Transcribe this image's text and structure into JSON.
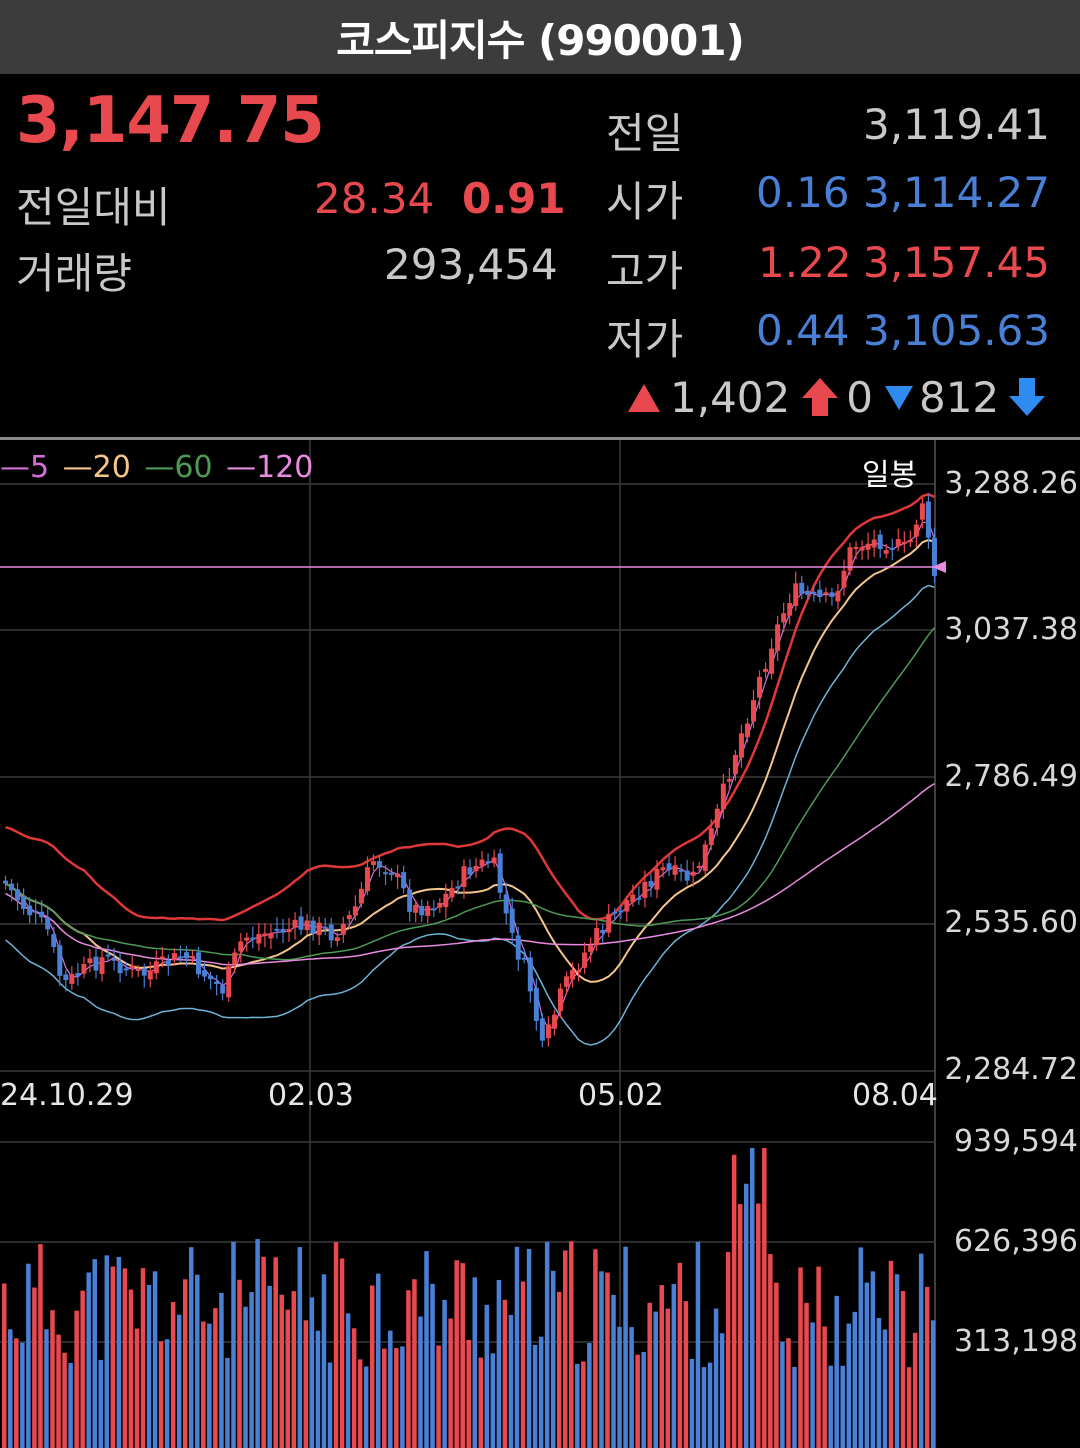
{
  "title": "코스피지수 (990001)",
  "price": "3,147.75",
  "change_label": "전일대비",
  "change_value": "28.34",
  "change_pct": "0.91",
  "volume_label": "거래량",
  "volume_value": "293,454",
  "prev": {
    "label": "전일",
    "value": "3,119.41"
  },
  "open": {
    "label": "시가",
    "pct": "0.16",
    "value": "3,114.27"
  },
  "high": {
    "label": "고가",
    "pct": "1.22",
    "value": "3,157.45"
  },
  "low": {
    "label": "저가",
    "pct": "0.44",
    "value": "3,105.63"
  },
  "breadth": {
    "up_icon": "triangle-up-icon",
    "up": "1,402",
    "upper_limit_icon": "arrow-up-icon",
    "upper_limit": "0",
    "down_icon": "triangle-down-icon",
    "down": "812",
    "lower_limit_icon": "arrow-down-icon"
  },
  "legend": {
    "ma5": "5",
    "ma20": "20",
    "ma60": "60",
    "ma120": "120"
  },
  "period_label": "일봉",
  "colors": {
    "up": "#e8494f",
    "down": "#4a7fd6",
    "ma5": "#d26fd9",
    "ma20": "#f5c48a",
    "ma60": "#4d9a56",
    "ma120": "#e88ae0",
    "bb": "#e03838",
    "bb_low": "#6fb3d6"
  },
  "chart_data": {
    "type": "candlestick",
    "title": "",
    "y_ticks": [
      "3,288.26",
      "3,037.38",
      "2,786.49",
      "2,535.60",
      "2,284.72"
    ],
    "x_ticks": [
      "24.10.29",
      "02.03",
      "05.02",
      "08.04"
    ],
    "volume_ticks": [
      "939,594",
      "626,396",
      "313,198"
    ],
    "ylim": [
      2284.72,
      3288.26
    ],
    "grid": true,
    "current_price_marker": 3147.75
  }
}
